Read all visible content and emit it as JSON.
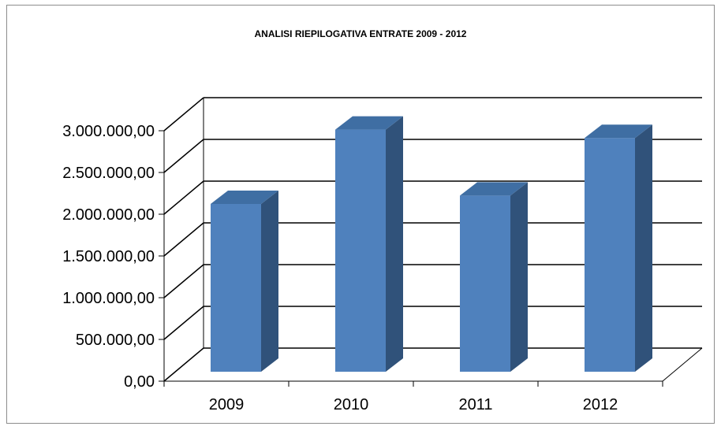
{
  "chart_data": {
    "type": "bar",
    "title": "ANALISI RIEPILOGATIVA ENTRATE 2009 - 2012",
    "categories": [
      "2009",
      "2010",
      "2011",
      "2012"
    ],
    "values": [
      2010000,
      2900000,
      2110000,
      2800000
    ],
    "ylim": [
      0,
      3000000
    ],
    "ytick_labels": [
      "0,00",
      "500.000,00",
      "1.000.000,00",
      "1.500.000,00",
      "2.000.000,00",
      "2.500.000,00",
      "3.000.000,00"
    ],
    "xlabel": "",
    "ylabel": "",
    "grid": true,
    "legend": "none",
    "three_d": true,
    "colors": {
      "bar_front": "#4f81bd",
      "bar_side": "#30527a",
      "bar_top": "#3f6ea3",
      "grid": "#000000"
    }
  }
}
